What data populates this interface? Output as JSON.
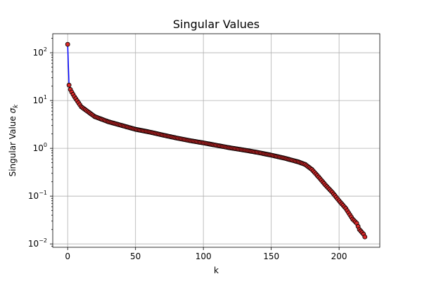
{
  "chart_data": {
    "type": "line",
    "title": "Singular Values",
    "xlabel": "k",
    "ylabel": "Singular Value",
    "ylabel_symbol": "σ",
    "ylabel_subscript": "k",
    "xlim": [
      -11,
      230
    ],
    "ylim": [
      0.0085,
      250
    ],
    "yscale": "log",
    "grid": true,
    "x_ticks": [
      0,
      50,
      100,
      150,
      200
    ],
    "y_ticks": [
      {
        "value": 0.01,
        "base": "10",
        "exp": "−2"
      },
      {
        "value": 0.1,
        "base": "10",
        "exp": "−1"
      },
      {
        "value": 1,
        "base": "10",
        "exp": "0"
      },
      {
        "value": 10,
        "base": "10",
        "exp": "1"
      },
      {
        "value": 100,
        "base": "10",
        "exp": "2"
      }
    ],
    "line_color": "#0000ff",
    "marker_color": "#d62728",
    "marker_edge_color": "#000000",
    "x": [
      0,
      1,
      2,
      3,
      5,
      10,
      20,
      30,
      40,
      50,
      60,
      70,
      80,
      90,
      100,
      110,
      120,
      130,
      140,
      150,
      160,
      170,
      175,
      180,
      185,
      190,
      195,
      200,
      205,
      210,
      213,
      215,
      218,
      219
    ],
    "values": [
      150,
      21,
      17,
      15,
      12,
      7.4,
      4.6,
      3.6,
      3.0,
      2.5,
      2.2,
      1.9,
      1.65,
      1.45,
      1.3,
      1.15,
      1.02,
      0.92,
      0.82,
      0.72,
      0.62,
      0.52,
      0.46,
      0.36,
      0.25,
      0.17,
      0.12,
      0.08,
      0.055,
      0.033,
      0.027,
      0.02,
      0.016,
      0.014
    ]
  }
}
